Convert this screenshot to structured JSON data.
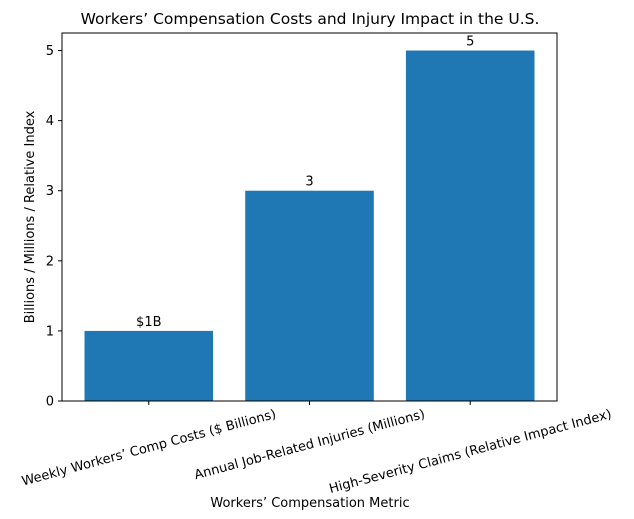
{
  "chart_data": {
    "type": "bar",
    "title": "Workers’ Compensation Costs and Injury Impact in the U.S.",
    "xlabel": "Workers’ Compensation Metric",
    "ylabel": "Billions / Millions / Relative Index",
    "categories": [
      "Weekly Workers’ Comp Costs ($ Billions)",
      "Annual Job-Related Injuries (Millions)",
      "High-Severity Claims (Relative Impact Index)"
    ],
    "values": [
      1,
      3,
      5
    ],
    "data_labels": [
      "$1B",
      "3",
      "5"
    ],
    "ylim": [
      0,
      5.25
    ],
    "yticks": [
      0,
      1,
      2,
      3,
      4,
      5
    ],
    "xtick_rotation_deg": 15,
    "grid": false,
    "bar_color": "#1f77b4"
  }
}
